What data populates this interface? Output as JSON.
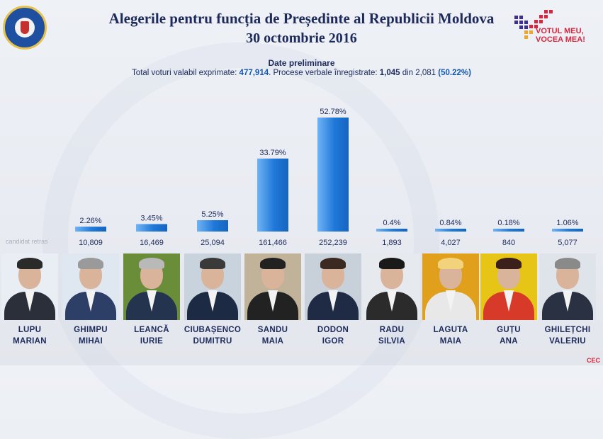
{
  "header": {
    "title": "Alegerile pentru funcția de Președinte al Republicii Moldova",
    "date": "30 octombrie 2016",
    "subtitle": "Date preliminare",
    "totals_label": "Total voturi valabil exprimate:",
    "totals_value": "477,914",
    "pv_label": ". Procese verbale înregistrate:",
    "pv_count": "1,045",
    "pv_of": "din 2,081",
    "pv_percent": "(50.22%)",
    "withdrawn_note": "candidat retras"
  },
  "brand": {
    "line1": "VOTUL MEU,",
    "line2": "VOCEA MEA!",
    "corner": "CEC"
  },
  "colors": {
    "bar": "#1f78d8",
    "bar_light": "#6fb3f5",
    "title": "#1d2b5c"
  },
  "chart_data": {
    "type": "bar",
    "categories": [
      "LUPU MARIAN",
      "GHIMPU MIHAI",
      "LEANCĂ IURIE",
      "CIUBAȘENCO DUMITRU",
      "SANDU MAIA",
      "DODON IGOR",
      "RADU SILVIA",
      "LAGUTA MAIA",
      "GUȚU ANA",
      "GHILEȚCHI VALERIU"
    ],
    "values": [
      null,
      2.26,
      3.45,
      5.25,
      33.79,
      52.78,
      0.4,
      0.84,
      0.18,
      1.06
    ],
    "value_labels": [
      "",
      "2.26%",
      "3.45%",
      "5.25%",
      "33.79%",
      "52.78%",
      "0.4%",
      "0.84%",
      "0.18%",
      "1.06%"
    ],
    "votes": [
      "",
      "10,809",
      "16,469",
      "25,094",
      "161,466",
      "252,239",
      "1,893",
      "4,027",
      "840",
      "5,077"
    ],
    "ylim": [
      0,
      55
    ]
  },
  "candidates": [
    {
      "last": "LUPU",
      "first": "MARIAN"
    },
    {
      "last": "GHIMPU",
      "first": "MIHAI"
    },
    {
      "last": "LEANCĂ",
      "first": "IURIE"
    },
    {
      "last": "CIUBAȘENCO",
      "first": "DUMITRU"
    },
    {
      "last": "SANDU",
      "first": "MAIA"
    },
    {
      "last": "DODON",
      "first": "IGOR"
    },
    {
      "last": "RADU",
      "first": "SILVIA"
    },
    {
      "last": "LAGUTA",
      "first": "MAIA"
    },
    {
      "last": "GUȚU",
      "first": "ANA"
    },
    {
      "last": "GHILEȚCHI",
      "first": "VALERIU"
    }
  ]
}
